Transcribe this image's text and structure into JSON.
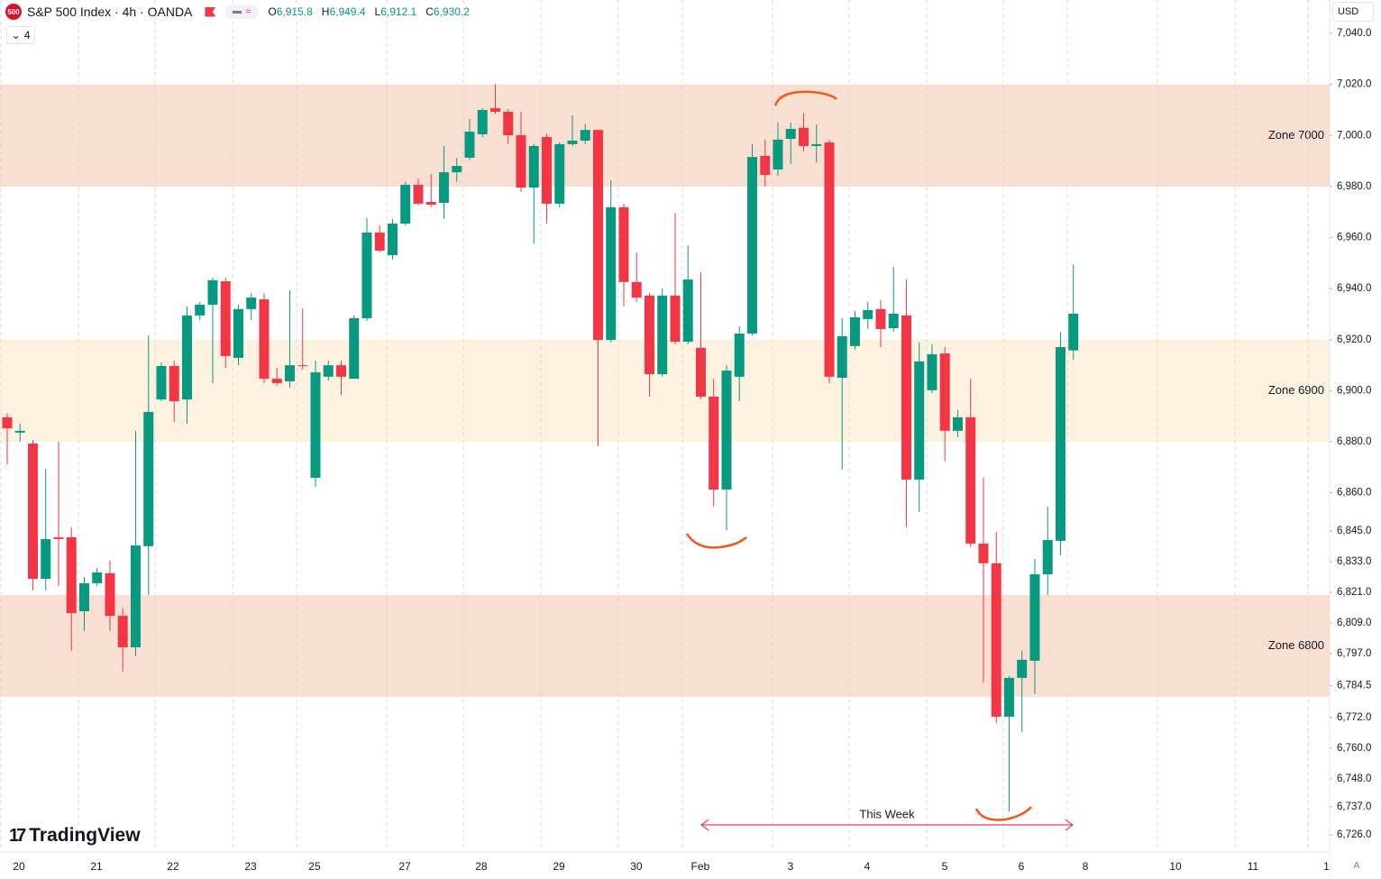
{
  "header": {
    "badge": "500",
    "title": "S&P 500 Index · 4h · OANDA",
    "ohlc": [
      {
        "key": "O",
        "value": "6,915.8"
      },
      {
        "key": "H",
        "value": "6,949.4"
      },
      {
        "key": "L",
        "value": "6,912.1"
      },
      {
        "key": "C",
        "value": "6,930.2"
      }
    ],
    "indicator_count": "4",
    "currency": "USD",
    "brand": "TradingView",
    "scale_mode": "A"
  },
  "chart_data": {
    "type": "candlestick",
    "up_color": "#089981",
    "down_color": "#f23645",
    "x": [
      0,
      1,
      2,
      3,
      4,
      5,
      6,
      7,
      8,
      9,
      10,
      11,
      12,
      13,
      14,
      15,
      16,
      17,
      18,
      19,
      20,
      21,
      22,
      23,
      24,
      25,
      26,
      27,
      28,
      29,
      30,
      31,
      32,
      33,
      34,
      35,
      36,
      37,
      38,
      39,
      40,
      41,
      42,
      43,
      44,
      45,
      46,
      47,
      48,
      49,
      50,
      51,
      52,
      53,
      54,
      55,
      56,
      57,
      58,
      59,
      60,
      61,
      62,
      63,
      64,
      65,
      66,
      67,
      68,
      69,
      70,
      71,
      72,
      73,
      74,
      75,
      76,
      77,
      78,
      79,
      80,
      81,
      82,
      83
    ],
    "open": [
      6889.6,
      6883.6,
      6879.3,
      6826.3,
      6842.6,
      6842.6,
      6813.6,
      6824.6,
      6828.5,
      6811.8,
      6799.5,
      6839.1,
      6896.6,
      6909.7,
      6896.6,
      6929.5,
      6933.7,
      6942.9,
      6912.9,
      6932.0,
      6935.8,
      6904.7,
      6903.7,
      6910.0,
      6865.9,
      6905.5,
      6910.0,
      6904.7,
      6928.4,
      6962.0,
      6953.1,
      6965.5,
      6980.7,
      6974.0,
      6973.6,
      6985.6,
      6991.3,
      7000.5,
      7010.7,
      7009.3,
      7000.1,
      6979.6,
      6999.4,
      6973.3,
      6996.6,
      6998.0,
      7002.2,
      6919.9,
      6971.9,
      6942.6,
      6937.3,
      6906.5,
      6937.3,
      6919.2,
      6916.8,
      6897.7,
      6861.3,
      6905.5,
      6922.4,
      6992.0,
      6986.7,
      6998.7,
      7003.0,
      6995.9,
      6997.3,
      6905.1,
      6917.5,
      6928.1,
      6932.0,
      6924.5,
      6929.5,
      6865.2,
      6900.2,
      6914.6,
      6884.3,
      6889.6,
      6840.1,
      6832.4,
      6772.3,
      6787.5,
      6794.2,
      6828.1,
      6841.2,
      6915.8
    ],
    "high": [
      6891.3,
      6887.1,
      6880.7,
      6869.4,
      6880.0,
      6846.5,
      6827.1,
      6830.6,
      6833.4,
      6814.7,
      6884.3,
      6921.7,
      6911.1,
      6911.8,
      6933.0,
      6934.8,
      6944.3,
      6944.3,
      6933.7,
      6938.3,
      6938.3,
      6909.0,
      6939.4,
      6932.3,
      6911.8,
      6911.8,
      6911.8,
      6929.5,
      6967.6,
      6964.8,
      6967.3,
      6981.8,
      6983.2,
      6984.9,
      6995.9,
      6991.3,
      7006.5,
      7010.7,
      7020.3,
      7010.4,
      7009.3,
      6996.6,
      7000.8,
      6997.3,
      7007.9,
      7004.4,
      7002.2,
      6982.5,
      6973.3,
      6954.2,
      6938.3,
      6940.1,
      6969.7,
      6957.0,
      6946.4,
      6904.7,
      6910.0,
      6925.2,
      6996.6,
      6998.4,
      7005.1,
      7005.1,
      7008.9,
      7004.4,
      6998.4,
      6928.4,
      6931.3,
      6934.8,
      6935.5,
      6948.6,
      6943.6,
      6918.9,
      6918.2,
      6917.1,
      6892.4,
      6904.7,
      6865.9,
      6844.7,
      6788.2,
      6798.1,
      6834.1,
      6854.6,
      6923.1,
      6949.4
    ],
    "low": [
      6871.2,
      6880.0,
      6821.8,
      6821.8,
      6823.5,
      6798.1,
      6805.9,
      6823.5,
      6805.9,
      6790.0,
      6796.0,
      6820.0,
      6895.9,
      6887.8,
      6887.1,
      6927.7,
      6903.0,
      6909.0,
      6910.0,
      6927.7,
      6903.0,
      6901.9,
      6901.2,
      6908.3,
      6862.4,
      6904.0,
      6898.4,
      6904.7,
      6927.4,
      6954.2,
      6951.4,
      6964.8,
      6972.6,
      6971.9,
      6967.3,
      6981.8,
      6990.2,
      6999.4,
      7008.6,
      6996.6,
      6977.9,
      6957.7,
      6965.5,
      6971.9,
      6995.9,
      6996.6,
      6878.3,
      6918.9,
      6933.0,
      6934.8,
      6897.7,
      6905.5,
      6918.2,
      6918.2,
      6896.6,
      6854.6,
      6845.4,
      6895.9,
      6921.7,
      6980.0,
      6984.2,
      6988.8,
      6993.8,
      6989.5,
      6903.0,
      6869.1,
      6916.1,
      6924.2,
      6917.1,
      6923.1,
      6846.5,
      6852.5,
      6899.1,
      6872.3,
      6881.8,
      6838.7,
      6785.7,
      6769.8,
      6735.2,
      6766.3,
      6781.1,
      6820.0,
      6835.5,
      6912.1
    ],
    "close": [
      6885.3,
      6884.3,
      6826.3,
      6841.9,
      6841.9,
      6812.9,
      6824.6,
      6828.8,
      6811.8,
      6799.5,
      6839.4,
      6891.7,
      6909.7,
      6895.9,
      6929.5,
      6933.7,
      6943.3,
      6913.6,
      6932.0,
      6936.5,
      6904.7,
      6903.0,
      6910.0,
      6909.7,
      6907.2,
      6910.0,
      6905.5,
      6928.4,
      6962.0,
      6954.9,
      6965.5,
      6980.7,
      6973.3,
      6972.9,
      6985.6,
      6988.1,
      7001.5,
      7010.0,
      7009.3,
      7000.1,
      6979.6,
      6995.9,
      6973.3,
      6996.6,
      6998.0,
      7002.2,
      6919.9,
      6971.9,
      6942.6,
      6936.5,
      6906.5,
      6937.3,
      6919.2,
      6943.6,
      6897.7,
      6861.3,
      6907.9,
      6922.4,
      6991.6,
      6984.6,
      6998.4,
      7002.6,
      6995.9,
      6996.6,
      6905.5,
      6921.4,
      6928.8,
      6931.6,
      6924.2,
      6930.2,
      6865.2,
      6911.5,
      6914.3,
      6884.3,
      6889.6,
      6840.1,
      6832.4,
      6772.3,
      6787.5,
      6794.6,
      6828.1,
      6841.5,
      6917.1,
      6930.2
    ],
    "xlim": [
      -0.56,
      102.95
    ],
    "xticks": [
      {
        "value": 0.91,
        "label": "20"
      },
      {
        "value": 6.95,
        "label": "21"
      },
      {
        "value": 12.91,
        "label": "22"
      },
      {
        "value": 18.95,
        "label": "23"
      },
      {
        "value": 23.93,
        "label": "25"
      },
      {
        "value": 30.95,
        "label": "27"
      },
      {
        "value": 36.91,
        "label": "28"
      },
      {
        "value": 42.95,
        "label": "29"
      },
      {
        "value": 48.98,
        "label": "30"
      },
      {
        "value": 53.96,
        "label": "Feb"
      },
      {
        "value": 60.98,
        "label": "3"
      },
      {
        "value": 66.95,
        "label": "4"
      },
      {
        "value": 72.98,
        "label": "5"
      },
      {
        "value": 78.95,
        "label": "6"
      },
      {
        "value": 83.93,
        "label": "8"
      },
      {
        "value": 90.95,
        "label": "10"
      },
      {
        "value": 96.98,
        "label": "11"
      },
      {
        "value": 102.7,
        "label": "1"
      }
    ],
    "xgrid": true,
    "ylim": [
      6719.3,
      7053.1
    ],
    "yticks": [
      {
        "value": 7040,
        "label": "7,040.0"
      },
      {
        "value": 7020,
        "label": "7,020.0"
      },
      {
        "value": 7000,
        "label": "7,000.0"
      },
      {
        "value": 6980,
        "label": "6,980.0"
      },
      {
        "value": 6960,
        "label": "6,960.0"
      },
      {
        "value": 6940,
        "label": "6,940.0"
      },
      {
        "value": 6920,
        "label": "6,920.0"
      },
      {
        "value": 6900,
        "label": "6,900.0"
      },
      {
        "value": 6880,
        "label": "6,880.0"
      },
      {
        "value": 6860,
        "label": "6,860.0"
      },
      {
        "value": 6845,
        "label": "6,845.0"
      },
      {
        "value": 6833,
        "label": "6,833.0"
      },
      {
        "value": 6821,
        "label": "6,821.0"
      },
      {
        "value": 6809,
        "label": "6,809.0"
      },
      {
        "value": 6797,
        "label": "6,797.0"
      },
      {
        "value": 6784.5,
        "label": "6,784.5"
      },
      {
        "value": 6772,
        "label": "6,772.0"
      },
      {
        "value": 6760,
        "label": "6,760.0"
      },
      {
        "value": 6748,
        "label": "6,748.0"
      },
      {
        "value": 6737,
        "label": "6,737.0"
      },
      {
        "value": 6726,
        "label": "6,726.0"
      }
    ],
    "zones": [
      {
        "label": "Zone 7000",
        "from": 6980,
        "to": 7020,
        "color": "#f8dccd"
      },
      {
        "label": "Zone 6900",
        "from": 6880,
        "to": 6920,
        "color": "#fdf0dd"
      },
      {
        "label": "Zone 6800",
        "from": 6780,
        "to": 6820,
        "color": "#f8dccd"
      }
    ],
    "annotations": [
      "This Week"
    ]
  }
}
